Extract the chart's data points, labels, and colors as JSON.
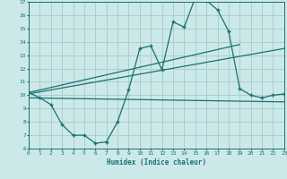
{
  "xlabel": "Humidex (Indice chaleur)",
  "background_color": "#cce9e9",
  "grid_color": "#aacece",
  "line_color": "#1a7070",
  "xlim": [
    0,
    23
  ],
  "ylim": [
    6,
    17
  ],
  "xticks": [
    0,
    1,
    2,
    3,
    4,
    5,
    6,
    7,
    8,
    9,
    10,
    11,
    12,
    13,
    14,
    15,
    16,
    17,
    18,
    19,
    20,
    21,
    22,
    23
  ],
  "yticks": [
    6,
    7,
    8,
    9,
    10,
    11,
    12,
    13,
    14,
    15,
    16,
    17
  ],
  "line1_x": [
    0,
    1,
    2,
    3,
    4,
    5,
    6,
    7,
    8,
    9,
    10,
    11,
    12,
    13,
    14,
    15,
    16,
    17,
    18,
    19,
    20,
    21,
    22,
    23
  ],
  "line1_y": [
    10.2,
    9.8,
    9.3,
    7.8,
    7.0,
    7.0,
    6.4,
    6.5,
    8.0,
    10.4,
    13.5,
    13.7,
    11.9,
    15.5,
    15.1,
    17.3,
    17.1,
    16.4,
    14.8,
    10.5,
    10.0,
    9.8,
    10.0,
    10.1
  ],
  "line2_x": [
    0,
    19
  ],
  "line2_y": [
    10.2,
    13.8
  ],
  "line3_x": [
    0,
    23
  ],
  "line3_y": [
    10.1,
    13.5
  ],
  "line4_x": [
    0,
    23
  ],
  "line4_y": [
    9.8,
    9.5
  ]
}
